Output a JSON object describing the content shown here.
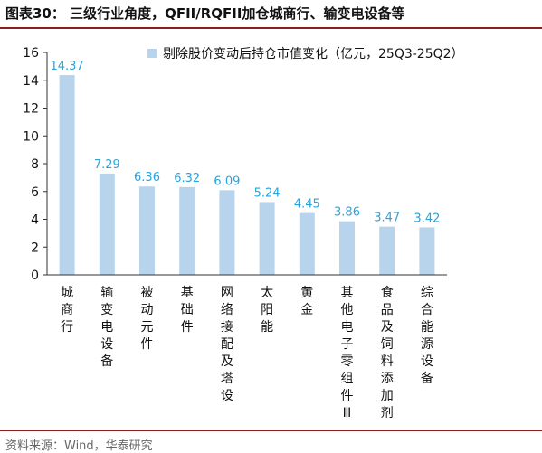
{
  "figure_title": "图表30：  三级行业角度，QFII/RQFII加仓城商行、输变电设备等",
  "source": "资料来源：Wind，华泰研究",
  "colors": {
    "bar": "#b8d4ec",
    "data_label": "#2aa3dc",
    "axis": "#333333",
    "rule": "#8a1f1f"
  },
  "chart_data": {
    "type": "bar",
    "categories": [
      "城商行",
      "输变电设备",
      "被动元件",
      "基础件",
      "网络接配及塔设",
      "太阳能",
      "黄金",
      "其他电子零组件Ⅲ",
      "食品及饲料添加剂",
      "综合能源设备"
    ],
    "series": [
      {
        "name": "剔除股价变动后持仓市值变化（亿元，25Q3-25Q2）",
        "values": [
          14.37,
          7.29,
          6.36,
          6.32,
          6.09,
          5.24,
          4.45,
          3.86,
          3.47,
          3.42
        ]
      }
    ],
    "value_labels": [
      "14.37",
      "7.29",
      "6.36",
      "6.32",
      "6.09",
      "5.24",
      "4.45",
      "3.86",
      "3.47",
      "3.42"
    ],
    "ylim": [
      0,
      16
    ],
    "yticks": [
      0,
      2,
      4,
      6,
      8,
      10,
      12,
      14,
      16
    ],
    "grid": false,
    "legend_position": "top-right"
  }
}
